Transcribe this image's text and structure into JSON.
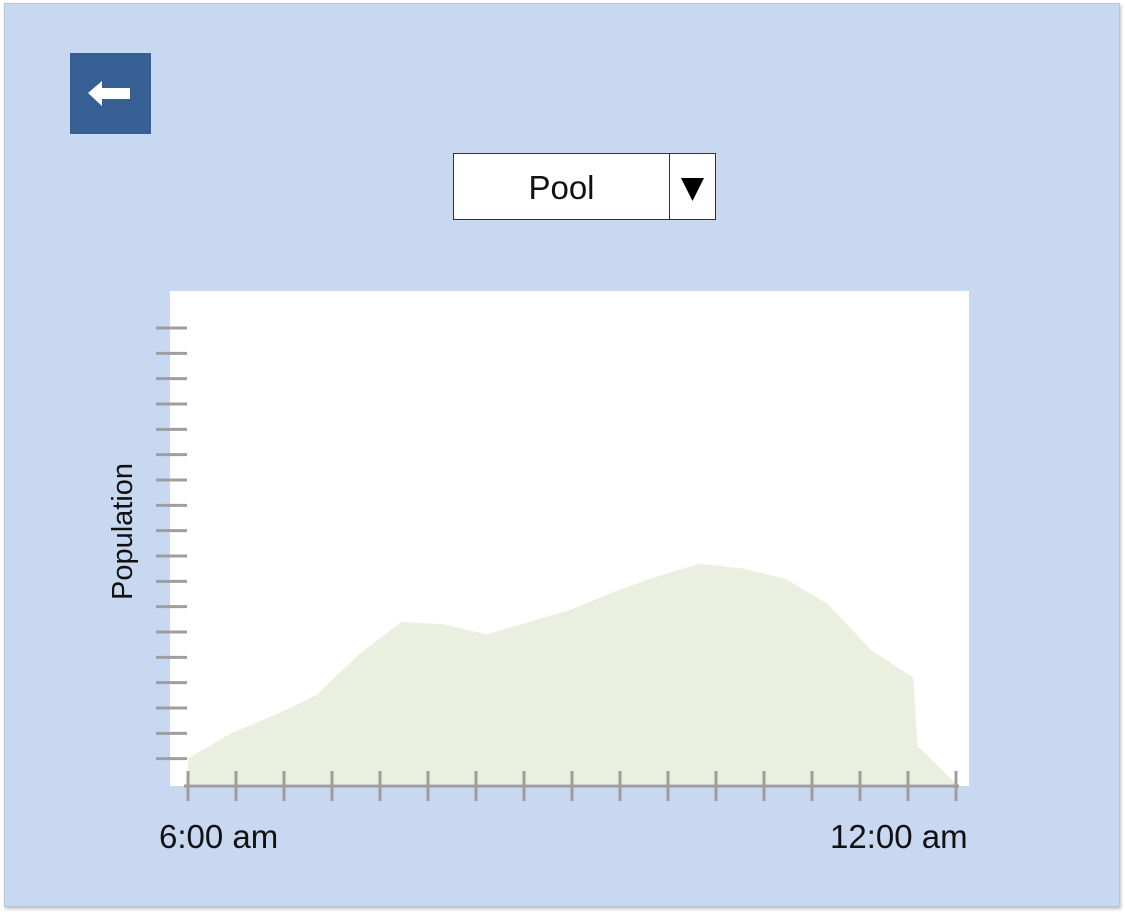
{
  "header": {
    "back_icon": "arrow-left-icon"
  },
  "location_select": {
    "selected": "Pool",
    "arrow_icon": "triangle-down-icon"
  },
  "chart_data": {
    "type": "area",
    "ylabel": "Population",
    "xlabel": "",
    "x_tick_labels": [
      "6:00 am",
      "12:00 am"
    ],
    "x": [
      6,
      7,
      8,
      9,
      10,
      11,
      12,
      13,
      14,
      15,
      16,
      17,
      18,
      19,
      20,
      21,
      22,
      23,
      23.1,
      24
    ],
    "values": [
      1,
      2,
      2.7,
      3.5,
      5.1,
      6.4,
      6.3,
      5.9,
      6.4,
      6.9,
      7.6,
      8.2,
      8.7,
      8.5,
      8.1,
      7.1,
      5.3,
      4.2,
      1.5,
      0
    ],
    "ylim": [
      0,
      18
    ],
    "x_range": [
      6,
      24
    ],
    "fill_color": "#ebefdf",
    "axis_color": "#9e9e9e",
    "background": "#ffffff"
  },
  "colors": {
    "page_background": "#c7d8f0",
    "back_button": "#365f93"
  }
}
